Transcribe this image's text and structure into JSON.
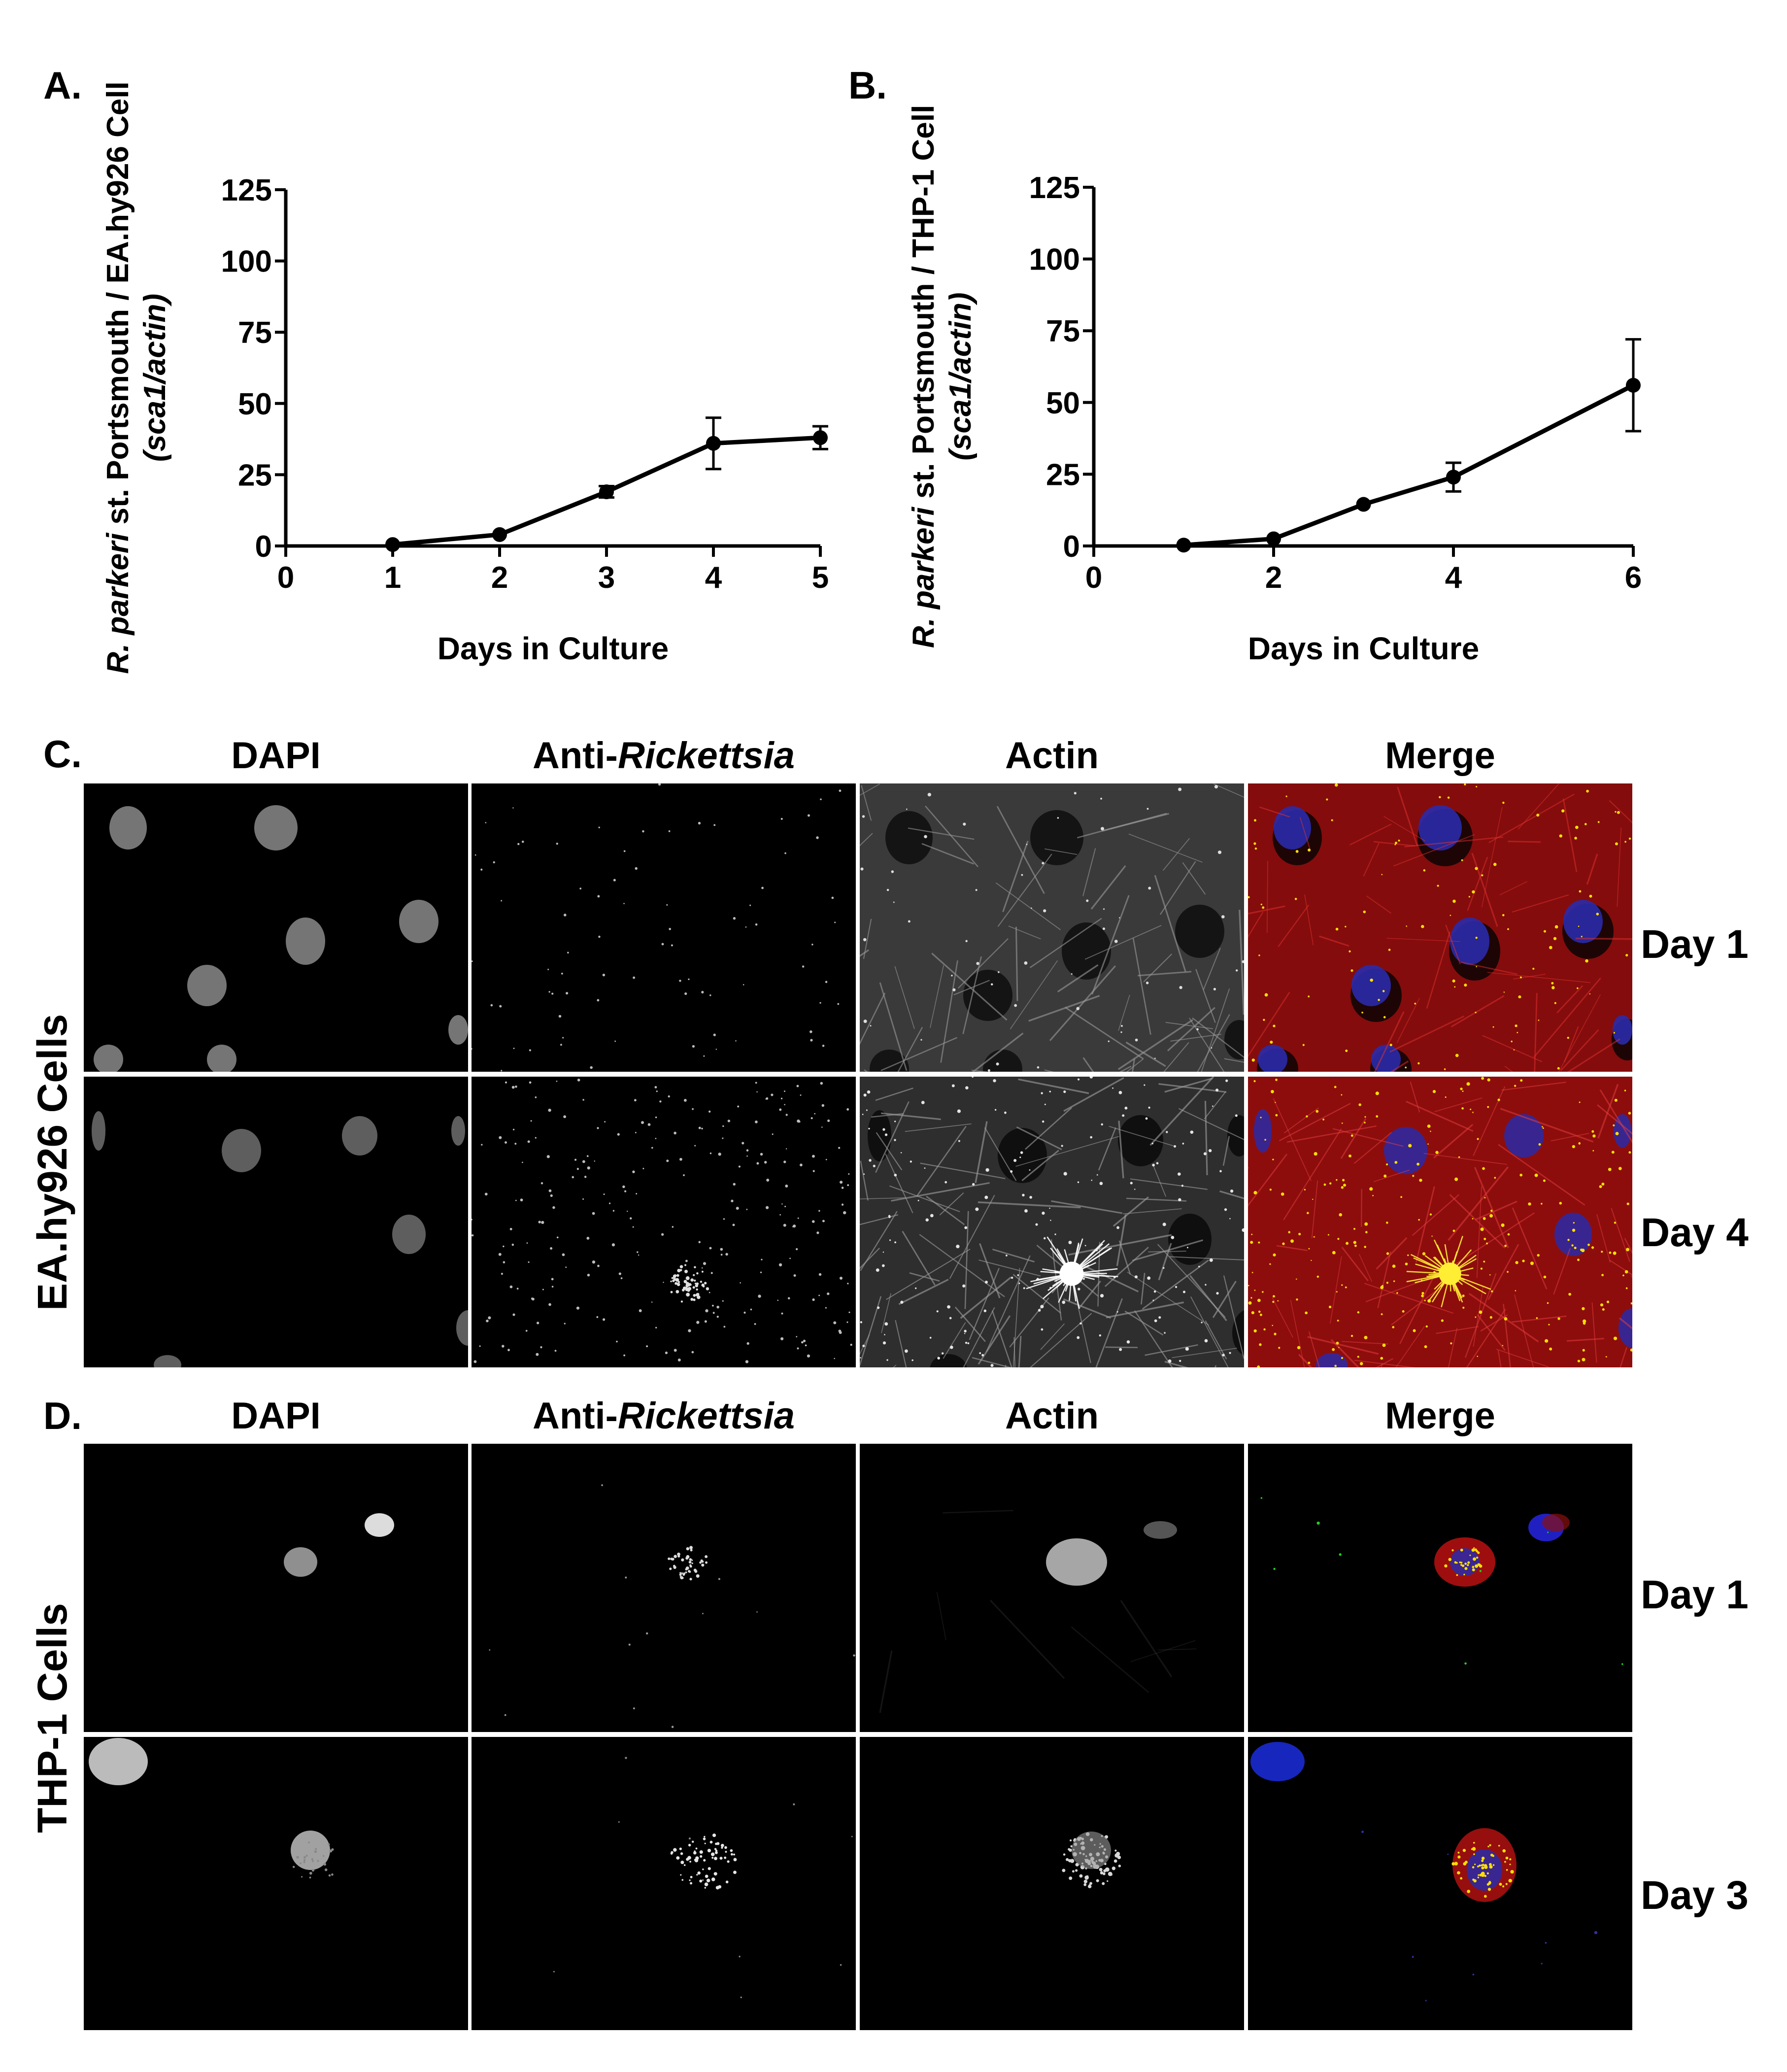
{
  "panels": {
    "A": {
      "letter": "A."
    },
    "B": {
      "letter": "B."
    },
    "C": {
      "letter": "C."
    },
    "D": {
      "letter": "D."
    }
  },
  "chart_data": [
    {
      "type": "line",
      "panel": "A.",
      "title": "",
      "ylabel_main": "R. parkeri st. Portsmouth / EA.hy926 Cell",
      "ylabel_italic_part": "R. parkeri",
      "ylabel_rest": " st. Portsmouth / EA.hy926 Cell",
      "ylabel_sub": "(sca1/actin)",
      "xlabel": "Days in Culture",
      "xlim": [
        0,
        5
      ],
      "ylim": [
        0,
        125
      ],
      "xticks": [
        0,
        1,
        2,
        3,
        4,
        5
      ],
      "yticks": [
        0,
        25,
        50,
        75,
        100,
        125
      ],
      "x": [
        1,
        2,
        3,
        4,
        5
      ],
      "y": [
        0.5,
        4,
        19,
        36,
        38
      ],
      "err": [
        0,
        0,
        2,
        9,
        4
      ],
      "grid": false
    },
    {
      "type": "line",
      "panel": "B.",
      "title": "",
      "ylabel_main": "R. parkeri st. Portsmouth / THP-1 Cell",
      "ylabel_italic_part": "R. parkeri",
      "ylabel_rest": " st. Portsmouth / THP-1 Cell",
      "ylabel_sub": "(sca1/actin)",
      "xlabel": "Days in Culture",
      "xlim": [
        0,
        6
      ],
      "ylim": [
        0,
        125
      ],
      "xticks": [
        0,
        2,
        4,
        6
      ],
      "yticks": [
        0,
        25,
        50,
        75,
        100,
        125
      ],
      "x": [
        1,
        2,
        3,
        4,
        6
      ],
      "y": [
        0.3,
        2.5,
        14.5,
        24,
        56
      ],
      "err": [
        0,
        0,
        0,
        5,
        16
      ],
      "grid": false
    }
  ],
  "microscopy": {
    "columns": {
      "dapi": "DAPI",
      "anti_prefix": "Anti-",
      "anti_italic": "Rickettsia",
      "actin": "Actin",
      "merge": "Merge"
    },
    "C": {
      "row_label": "EA.hy926 Cells",
      "days": [
        "Day 1",
        "Day 4"
      ]
    },
    "D": {
      "row_label": "THP-1 Cells",
      "days": [
        "Day 1",
        "Day 3"
      ]
    },
    "colors": {
      "nucleus_blue": "#2a2aa8",
      "actin_red": "#b01010",
      "bacteria_yellow": "#ffe000",
      "bacteria_green": "#1fd01f"
    }
  }
}
